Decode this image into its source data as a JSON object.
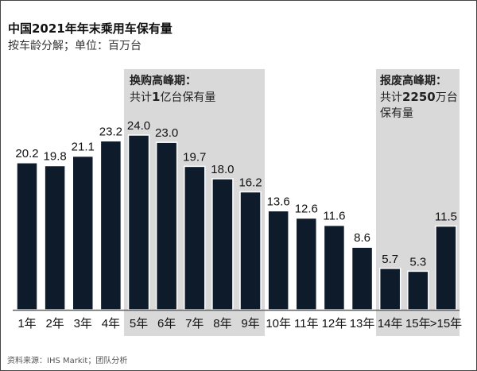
{
  "header": {
    "title": "中国2021年年末乘用车保有量",
    "subtitle": "按车龄分解；单位：百万台"
  },
  "annotations": [
    {
      "heading": "换购高峰期：",
      "line1_prefix": "共计",
      "line1_bold": "1",
      "line1_suffix": "亿台保有量",
      "line2": ""
    },
    {
      "heading": "报废高峰期：",
      "line1_prefix": "共计",
      "line1_bold": "2250",
      "line1_suffix": "万台",
      "line2": "保有量"
    }
  ],
  "source": "资料来源：IHS Markit；团队分析",
  "colors": {
    "bar": "#0d1b2a",
    "shade": "#d9d9d9"
  },
  "chart_data": {
    "type": "bar",
    "title": "中国2021年年末乘用车保有量",
    "subtitle": "按车龄分解；单位：百万台",
    "categories": [
      "1年",
      "2年",
      "3年",
      "4年",
      "5年",
      "6年",
      "7年",
      "8年",
      "9年",
      "10年",
      "11年",
      "12年",
      "13年",
      "14年",
      "15年",
      ">15年"
    ],
    "values": [
      20.2,
      19.8,
      21.1,
      23.2,
      24.0,
      23.0,
      19.7,
      18.0,
      16.2,
      13.6,
      12.6,
      11.6,
      8.6,
      5.7,
      5.3,
      11.5
    ],
    "value_labels": [
      "20.2",
      "19.8",
      "21.1",
      "23.2",
      "24.0",
      "23.0",
      "19.7",
      "18.0",
      "16.2",
      "13.6",
      "12.6",
      "11.6",
      "8.6",
      "5.7",
      "5.3",
      "11.5"
    ],
    "highlight_ranges": [
      [
        "5年",
        "9年"
      ],
      [
        "14年",
        ">15年"
      ]
    ],
    "ylim": [
      0,
      24
    ],
    "grid": false,
    "legend": "none"
  }
}
